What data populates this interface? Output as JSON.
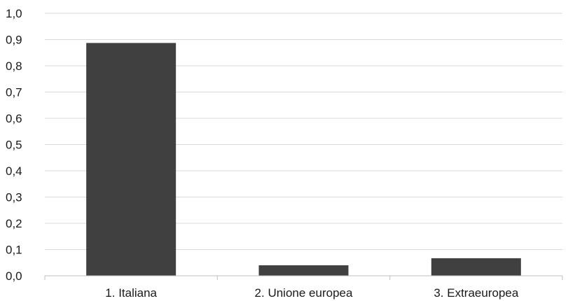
{
  "chart_data": {
    "type": "bar",
    "categories": [
      "1. Italiana",
      "2. Unione europea",
      "3. Extraeuropea"
    ],
    "values": [
      0.887,
      0.04,
      0.067
    ],
    "ylim": [
      0,
      1.0
    ],
    "yticks": [
      "0,0",
      "0,1",
      "0,2",
      "0,3",
      "0,4",
      "0,5",
      "0,6",
      "0,7",
      "0,8",
      "0,9",
      "1,0"
    ],
    "grid": true,
    "legend": "none",
    "bar_color": "#404040"
  }
}
